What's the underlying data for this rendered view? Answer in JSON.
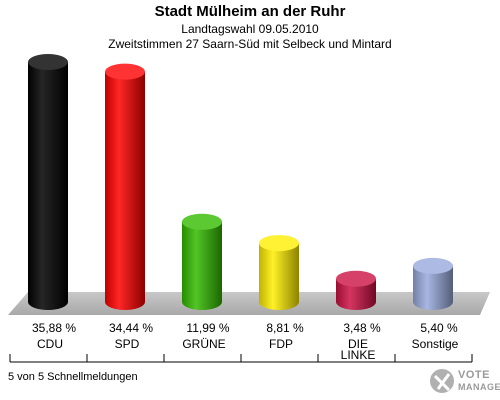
{
  "title": "Stadt Mülheim an der Ruhr",
  "subtitle1": "Landtagswahl 09.05.2010",
  "subtitle2": "Zweitstimmen 27 Saarn-Süd mit Selbeck und Mintard",
  "footnote": "5 von 5 Schnellmeldungen",
  "logo": {
    "line1": "VOTE",
    "line2": "MANAGER"
  },
  "chart_data": {
    "type": "bar",
    "title": "Stadt Mülheim an der Ruhr",
    "categories": [
      "CDU",
      "SPD",
      "GRÜNE",
      "FDP",
      "DIE LINKE",
      "Sonstige"
    ],
    "category_labels": [
      [
        "CDU"
      ],
      [
        "SPD"
      ],
      [
        "GRÜNE"
      ],
      [
        "FDP"
      ],
      [
        "DIE",
        "LINKE"
      ],
      [
        "Sonstige"
      ]
    ],
    "values": [
      35.88,
      34.44,
      11.99,
      8.81,
      3.48,
      5.4
    ],
    "value_labels": [
      "35,88 %",
      "34,44 %",
      "11,99 %",
      "8,81 %",
      "3,48 %",
      "5,40 %"
    ],
    "colors": [
      "#000000",
      "#ff0000",
      "#33bb00",
      "#ffee00",
      "#cc1144",
      "#99aadd"
    ],
    "unit": "%",
    "ylim": [
      0,
      40
    ],
    "grid": false,
    "legend": "none"
  }
}
